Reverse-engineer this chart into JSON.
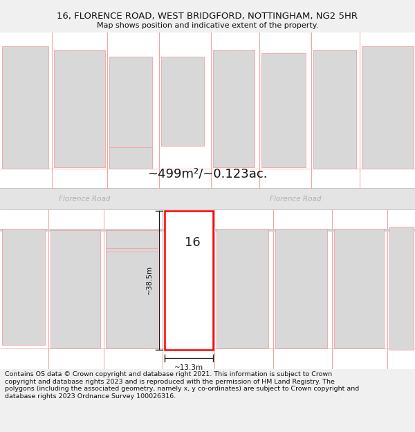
{
  "title_line1": "16, FLORENCE ROAD, WEST BRIDGFORD, NOTTINGHAM, NG2 5HR",
  "title_line2": "Map shows position and indicative extent of the property.",
  "footer_text": "Contains OS data © Crown copyright and database right 2021. This information is subject to Crown copyright and database rights 2023 and is reproduced with the permission of HM Land Registry. The polygons (including the associated geometry, namely x, y co-ordinates) are subject to Crown copyright and database rights 2023 Ordnance Survey 100026316.",
  "area_label": "~499m²/~0.123ac.",
  "road_label": "Florence Road",
  "width_label": "~13.3m",
  "height_label": "~38.5m",
  "number_label": "16",
  "bg_color": "#f0f0f0",
  "map_bg": "#ffffff",
  "road_bg": "#e4e4e4",
  "plot_line_color": "#ff0000",
  "other_plot_line_color": "#f5a0a0",
  "plot_fill": "#ebebeb",
  "building_fill": "#d8d8d8",
  "road_label_color": "#b0b0b0",
  "dim_line_color": "#1a1a1a",
  "title_fontsize": 9.5,
  "subtitle_fontsize": 8,
  "footer_fontsize": 6.8,
  "area_fontsize": 13
}
